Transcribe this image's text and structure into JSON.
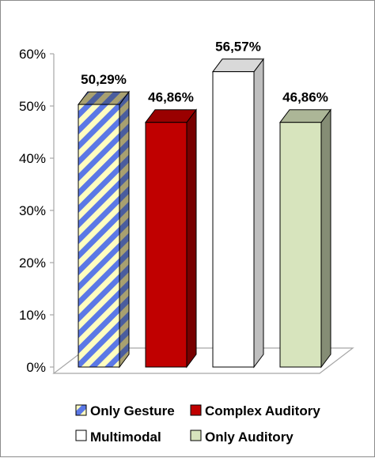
{
  "chart_data": {
    "type": "bar",
    "title": "",
    "xlabel": "",
    "ylabel": "",
    "ylim": [
      0,
      60
    ],
    "yticks": [
      "0%",
      "10%",
      "20%",
      "30%",
      "40%",
      "50%",
      "60%"
    ],
    "grid": false,
    "legend_position": "bottom",
    "series": [
      {
        "name": "Only Gesture",
        "value": 50.29,
        "label": "50,29%",
        "color": "#5b78e6",
        "pattern": "diagonal-stripes",
        "stripe_bg": "#fffdc0"
      },
      {
        "name": "Complex Auditory",
        "value": 46.86,
        "label": "46,86%",
        "color": "#c00000"
      },
      {
        "name": "Multimodal",
        "value": 56.57,
        "label": "56,57%",
        "color": "#ffffff"
      },
      {
        "name": "Only Auditory",
        "value": 46.86,
        "label": "46,86%",
        "color": "#d7e4bd"
      }
    ]
  }
}
